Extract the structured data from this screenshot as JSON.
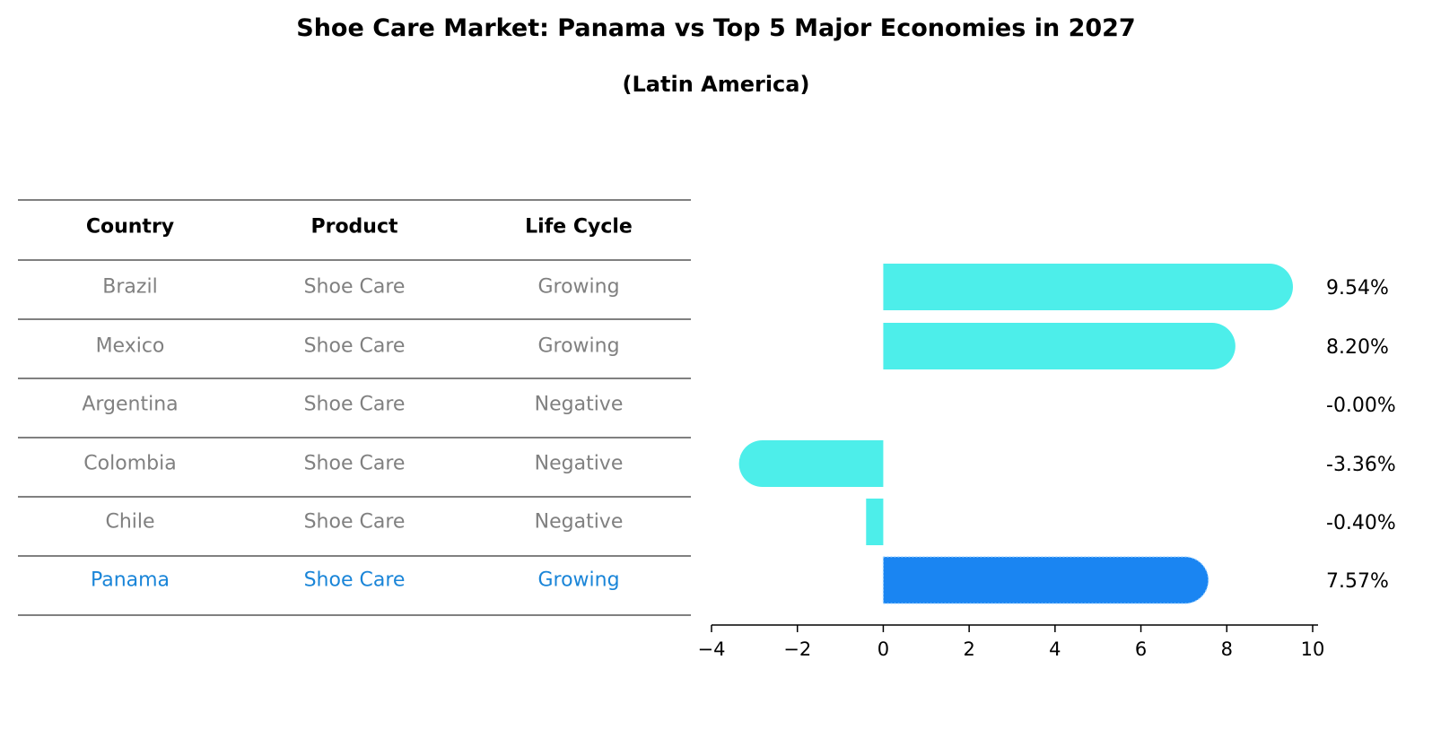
{
  "title": "Shoe Care Market: Panama vs Top 5 Major Economies in 2027",
  "subtitle": "(Latin America)",
  "table": {
    "columns": [
      "Country",
      "Product",
      "Life Cycle"
    ],
    "rows": [
      [
        "Brazil",
        "Shoe Care",
        "Growing"
      ],
      [
        "Mexico",
        "Shoe Care",
        "Growing"
      ],
      [
        "Argentina",
        "Shoe Care",
        "Negative"
      ],
      [
        "Colombia",
        "Shoe Care",
        "Negative"
      ],
      [
        "Chile",
        "Shoe Care",
        "Negative"
      ],
      [
        "Panama",
        "Shoe Care",
        "Growing"
      ]
    ],
    "highlight_row": 5
  },
  "colors": {
    "bar": "#4DEEEA",
    "highlight": "#1A85F2",
    "muted_text": "#808080",
    "highlight_text": "#1A85D8"
  },
  "chart_data": {
    "type": "bar",
    "orientation": "horizontal",
    "categories": [
      "Brazil",
      "Mexico",
      "Argentina",
      "Colombia",
      "Chile",
      "Panama"
    ],
    "values": [
      9.54,
      8.2,
      -0.0,
      -3.36,
      -0.4,
      7.57
    ],
    "value_labels": [
      "9.54%",
      "8.20%",
      "-0.00%",
      "-3.36%",
      "-0.40%",
      "7.57%"
    ],
    "xlim": [
      -4,
      10
    ],
    "xticks": [
      -4,
      -2,
      0,
      2,
      4,
      6,
      8,
      10
    ],
    "xtick_labels": [
      "−4",
      "−2",
      "0",
      "2",
      "4",
      "6",
      "8",
      "10"
    ],
    "highlight": "Panama",
    "grid": false
  }
}
